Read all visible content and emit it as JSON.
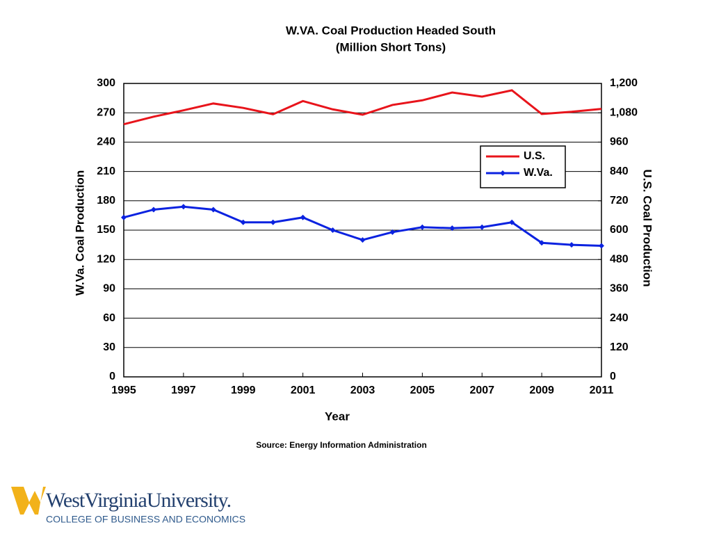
{
  "chart_data": {
    "type": "line",
    "title": "W.VA. Coal Production Headed South",
    "subtitle": "(Million Short Tons)",
    "x_label": "Year",
    "y_label": "W.Va. Coal Production",
    "y2_label": "U.S. Coal Production",
    "source": "Source: Energy Information Administration",
    "x": [
      1995,
      1996,
      1997,
      1998,
      1999,
      2000,
      2001,
      2002,
      2003,
      2004,
      2005,
      2006,
      2007,
      2008,
      2009,
      2010,
      2011
    ],
    "xlim": [
      1995,
      2011
    ],
    "xticks": [
      1995,
      1997,
      1999,
      2001,
      2003,
      2005,
      2007,
      2009,
      2011
    ],
    "ylim": [
      0,
      300
    ],
    "yticks": [
      0,
      30,
      60,
      90,
      120,
      150,
      180,
      210,
      240,
      270,
      300
    ],
    "y2lim": [
      0,
      1200
    ],
    "y2ticks": [
      0,
      120,
      240,
      360,
      480,
      600,
      720,
      840,
      960,
      {
        "value": 1080,
        "label": "1,080"
      },
      {
        "value": 1200,
        "label": "1,200"
      }
    ],
    "grid": true,
    "legend": "upper right",
    "series": [
      {
        "name": "U.S.",
        "color": "#e8141b",
        "axis": "y2",
        "marker": "none",
        "values": [
          1033,
          1064,
          1090,
          1118,
          1100,
          1074,
          1128,
          1094,
          1072,
          1112,
          1131,
          1163,
          1146,
          1172,
          1075,
          1084,
          1096
        ]
      },
      {
        "name": "W.Va.",
        "color": "#0b22e0",
        "axis": "y",
        "marker": "diamond",
        "values": [
          163,
          171,
          174,
          171,
          158,
          158,
          163,
          150,
          140,
          148,
          153,
          152,
          153,
          158,
          137,
          135,
          134
        ]
      }
    ]
  },
  "logo": {
    "name": "WestVirginiaUniversity.",
    "college": "COLLEGE OF BUSINESS AND ECONOMICS"
  }
}
